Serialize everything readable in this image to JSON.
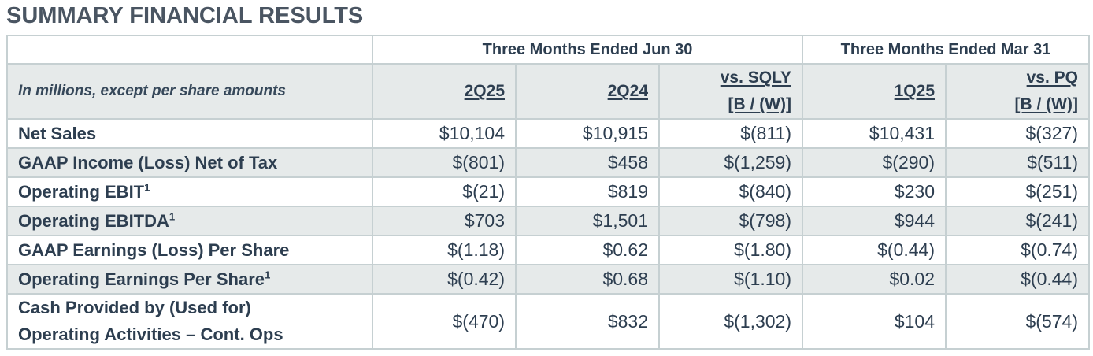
{
  "title": "SUMMARY FINANCIAL RESULTS",
  "group_headers": [
    "Three Months Ended Jun 30",
    "Three Months Ended Mar 31"
  ],
  "note": "In millions, except per share amounts",
  "columns": [
    {
      "lines": [
        "2Q25"
      ]
    },
    {
      "lines": [
        "2Q24"
      ]
    },
    {
      "lines": [
        "vs. SQLY",
        "[B / (W)]"
      ]
    },
    {
      "lines": [
        "1Q25"
      ]
    },
    {
      "lines": [
        "vs. PQ",
        "[B / (W)]"
      ]
    }
  ],
  "rows": [
    {
      "label": [
        "Net Sales"
      ],
      "sup": "",
      "values": [
        "$10,104",
        "$10,915",
        "$(811)",
        "$10,431",
        "$(327)"
      ]
    },
    {
      "label": [
        "GAAP Income (Loss) Net of Tax"
      ],
      "sup": "",
      "values": [
        "$(801)",
        "$458",
        "$(1,259)",
        "$(290)",
        "$(511)"
      ]
    },
    {
      "label": [
        "Operating EBIT"
      ],
      "sup": "1",
      "values": [
        "$(21)",
        "$819",
        "$(840)",
        "$230",
        "$(251)"
      ]
    },
    {
      "label": [
        "Operating EBITDA"
      ],
      "sup": "1",
      "values": [
        "$703",
        "$1,501",
        "$(798)",
        "$944",
        "$(241)"
      ]
    },
    {
      "label": [
        "GAAP Earnings (Loss) Per Share"
      ],
      "sup": "",
      "values": [
        "$(1.18)",
        "$0.62",
        "$(1.80)",
        "$(0.44)",
        "$(0.74)"
      ]
    },
    {
      "label": [
        "Operating Earnings Per Share"
      ],
      "sup": "1",
      "values": [
        "$(0.42)",
        "$0.68",
        "$(1.10)",
        "$0.02",
        "$(0.44)"
      ]
    },
    {
      "label": [
        "Cash Provided by (Used for)",
        "Operating Activities – Cont. Ops"
      ],
      "sup": "",
      "values": [
        "$(470)",
        "$832",
        "$(1,302)",
        "$104",
        "$(574)"
      ]
    }
  ]
}
